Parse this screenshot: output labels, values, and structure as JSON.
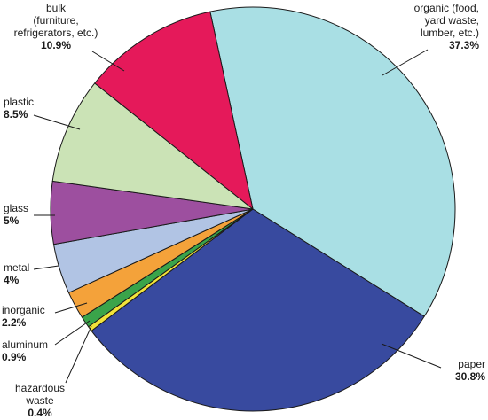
{
  "chart_data": {
    "type": "pie",
    "slices": [
      {
        "key": "organic",
        "label_lines": [
          "organic (food,",
          "yard waste,",
          "lumber, etc.)"
        ],
        "value_text": "37.3%",
        "value": 37.3,
        "color": "#a9dfe4"
      },
      {
        "key": "paper",
        "label_lines": [
          "paper"
        ],
        "value_text": "30.8%",
        "value": 30.8,
        "color": "#384a9f"
      },
      {
        "key": "hazardous",
        "label_lines": [
          "hazardous",
          "waste"
        ],
        "value_text": "0.4%",
        "value": 0.4,
        "color": "#f2e33a"
      },
      {
        "key": "aluminum",
        "label_lines": [
          "aluminum"
        ],
        "value_text": "0.9%",
        "value": 0.9,
        "color": "#3aa44a"
      },
      {
        "key": "inorganic",
        "label_lines": [
          "inorganic"
        ],
        "value_text": "2.2%",
        "value": 2.2,
        "color": "#f4a23a"
      },
      {
        "key": "metal",
        "label_lines": [
          "metal"
        ],
        "value_text": "4%",
        "value": 4,
        "color": "#b1c4e4"
      },
      {
        "key": "glass",
        "label_lines": [
          "glass"
        ],
        "value_text": "5%",
        "value": 5,
        "color": "#9d4f9f"
      },
      {
        "key": "plastic",
        "label_lines": [
          "plastic"
        ],
        "value_text": "8.5%",
        "value": 8.5,
        "color": "#cbe3b6"
      },
      {
        "key": "bulk",
        "label_lines": [
          "bulk",
          "(furniture,",
          "refrigerators, etc.)"
        ],
        "value_text": "10.9%",
        "value": 10.9,
        "color": "#e5195a"
      }
    ]
  }
}
